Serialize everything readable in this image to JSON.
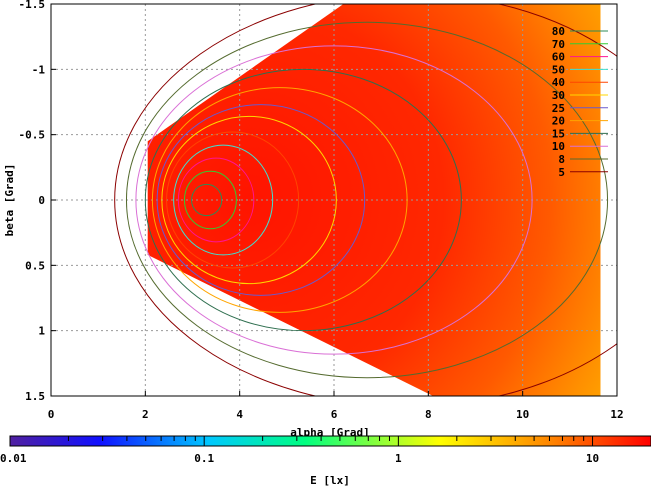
{
  "chart_data": {
    "type": "heatmap",
    "xlabel": "alpha [Grad]",
    "ylabel": "beta [Grad]",
    "xlim": [
      0,
      12
    ],
    "ylim": [
      -1.5,
      1.5
    ],
    "y_reversed": true,
    "grid": true,
    "x_ticks": [
      "0",
      "2",
      "4",
      "6",
      "8",
      "10",
      "12"
    ],
    "x_tick_values": [
      0,
      2,
      4,
      6,
      8,
      10,
      12
    ],
    "y_ticks": [
      "-1.5",
      "-1",
      "-0.5",
      "0",
      "0.5",
      "1",
      "1.5"
    ],
    "y_tick_values": [
      -1.5,
      -1,
      -0.5,
      0,
      0.5,
      1,
      1.5
    ],
    "colorbar": {
      "label": "E [lx]",
      "scale": "log",
      "range": [
        0.01,
        20
      ],
      "ticks": [
        "0.01",
        "0.1",
        "1",
        "10"
      ],
      "tick_values": [
        0.01,
        0.1,
        1,
        10
      ]
    },
    "legend_position": "top-right",
    "contours": [
      {
        "level": "80",
        "color": "#2e8b57"
      },
      {
        "level": "70",
        "color": "#32cd32"
      },
      {
        "level": "60",
        "color": "#ff1493"
      },
      {
        "level": "50",
        "color": "#40e0d0"
      },
      {
        "level": "40",
        "color": "#ff4500"
      },
      {
        "level": "30",
        "color": "#ffd700"
      },
      {
        "level": "25",
        "color": "#6a5acd"
      },
      {
        "level": "20",
        "color": "#ffa500"
      },
      {
        "level": "15",
        "color": "#2f6f4f"
      },
      {
        "level": "10",
        "color": "#da70d6"
      },
      {
        "level": "8",
        "color": "#556b2f"
      },
      {
        "level": "5",
        "color": "#8b0000"
      }
    ],
    "peak": {
      "alpha": 3.3,
      "beta": 0.0
    }
  }
}
